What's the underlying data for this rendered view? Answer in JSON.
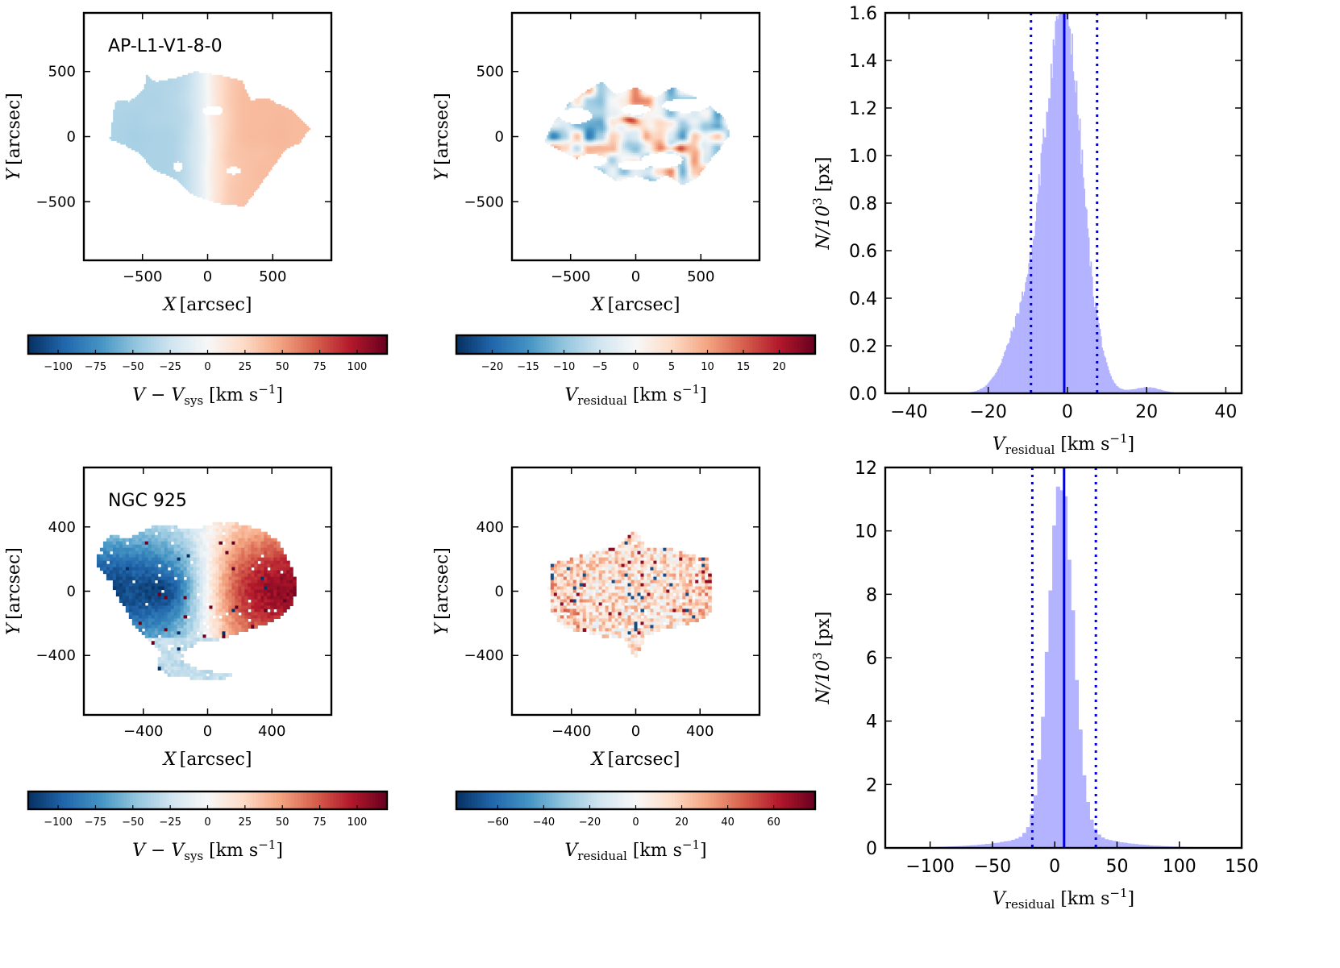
{
  "chart_data": [
    {
      "type": "heatmap",
      "panel": "velocity-map-top",
      "annotation": "AP-L1-V1-8-0",
      "xlabel": {
        "sym": "X",
        "unit": "[arcsec]"
      },
      "ylabel": {
        "sym": "Y",
        "unit": "[arcsec]"
      },
      "xlim": [
        -950,
        950
      ],
      "ylim": [
        -950,
        950
      ],
      "xticks": [
        -500,
        0,
        500
      ],
      "yticks": [
        -500,
        0,
        500
      ],
      "colorbar": {
        "cmap": "RdBu_r",
        "range": [
          -120,
          120
        ],
        "ticks": [
          -100,
          -75,
          -50,
          -25,
          0,
          25,
          50,
          75,
          100
        ],
        "label": {
          "main": "V − V",
          "sub": "sys",
          "unit": "[km s",
          "sup": "−1",
          "close": "]"
        }
      }
    },
    {
      "type": "heatmap",
      "panel": "residual-map-top",
      "annotation": "",
      "xlabel": {
        "sym": "X",
        "unit": "[arcsec]"
      },
      "ylabel": {
        "sym": "Y",
        "unit": "[arcsec]"
      },
      "xlim": [
        -950,
        950
      ],
      "ylim": [
        -950,
        950
      ],
      "xticks": [
        -500,
        0,
        500
      ],
      "yticks": [
        -500,
        0,
        500
      ],
      "colorbar": {
        "cmap": "RdBu_r",
        "range": [
          -25,
          25
        ],
        "ticks": [
          -20,
          -15,
          -10,
          -5,
          0,
          5,
          10,
          15,
          20
        ],
        "label": {
          "main": "V",
          "sub": "residual",
          "unit": "[km s",
          "sup": "−1",
          "close": "]"
        }
      }
    },
    {
      "type": "bar",
      "panel": "residual-histogram-top",
      "xlabel": {
        "main": "V",
        "sub": "residual",
        "unit": "[km s",
        "sup": "−1",
        "close": "]"
      },
      "ylabel": {
        "main": "N/10",
        "sup": "3",
        "unit": "[px]"
      },
      "xlim": [
        -46,
        44
      ],
      "ylim": [
        0,
        1.6
      ],
      "xticks": [
        -40,
        -20,
        0,
        20,
        40
      ],
      "yticks": [
        "0.0",
        "0.2",
        "0.4",
        "0.6",
        "0.8",
        "1.0",
        "1.2",
        "1.4",
        "1.6"
      ],
      "bin_range": [
        -32,
        29
      ],
      "bin_width": 0.28,
      "median": -0.8,
      "percentile_lines": [
        -9.2,
        7.5
      ],
      "colors": {
        "hist": "#b3b3ff",
        "median": "#0000dd",
        "dotted": "#0000dd"
      }
    },
    {
      "type": "heatmap",
      "panel": "velocity-map-bottom",
      "annotation": "NGC 925",
      "xlabel": {
        "sym": "X",
        "unit": "[arcsec]"
      },
      "ylabel": {
        "sym": "Y",
        "unit": "[arcsec]"
      },
      "xlim": [
        -770,
        770
      ],
      "ylim": [
        -770,
        770
      ],
      "xticks": [
        -400,
        0,
        400
      ],
      "yticks": [
        -400,
        0,
        400
      ],
      "colorbar": {
        "cmap": "RdBu_r",
        "range": [
          -120,
          120
        ],
        "ticks": [
          -100,
          -75,
          -50,
          -25,
          0,
          25,
          50,
          75,
          100
        ],
        "label": {
          "main": "V − V",
          "sub": "sys",
          "unit": "[km s",
          "sup": "−1",
          "close": "]"
        }
      }
    },
    {
      "type": "heatmap",
      "panel": "residual-map-bottom",
      "annotation": "",
      "xlabel": {
        "sym": "X",
        "unit": "[arcsec]"
      },
      "ylabel": {
        "sym": "Y",
        "unit": "[arcsec]"
      },
      "xlim": [
        -770,
        770
      ],
      "ylim": [
        -770,
        770
      ],
      "xticks": [
        -400,
        0,
        400
      ],
      "yticks": [
        -400,
        0,
        400
      ],
      "colorbar": {
        "cmap": "RdBu_r",
        "range": [
          -78,
          78
        ],
        "ticks": [
          -60,
          -40,
          -20,
          0,
          20,
          40,
          60
        ],
        "label": {
          "main": "V",
          "sub": "residual",
          "unit": "[km s",
          "sup": "−1",
          "close": "]"
        }
      }
    },
    {
      "type": "bar",
      "panel": "residual-histogram-bottom",
      "xlabel": {
        "main": "V",
        "sub": "residual",
        "unit": "[km s",
        "sup": "−1",
        "close": "]"
      },
      "ylabel": {
        "main": "N/10",
        "sup": "3",
        "unit": "[px]"
      },
      "xlim": [
        -136,
        150
      ],
      "ylim": [
        0,
        12
      ],
      "xticks": [
        -100,
        -50,
        0,
        50,
        100,
        150
      ],
      "yticks": [
        "0",
        "2",
        "4",
        "6",
        "8",
        "10",
        "12"
      ],
      "bin_range": [
        -110,
        150
      ],
      "bin_width": 3,
      "median": 7.5,
      "percentile_lines": [
        -18,
        33
      ],
      "colors": {
        "hist": "#b3b3ff",
        "median": "#0000dd",
        "dotted": "#0000dd"
      }
    }
  ]
}
